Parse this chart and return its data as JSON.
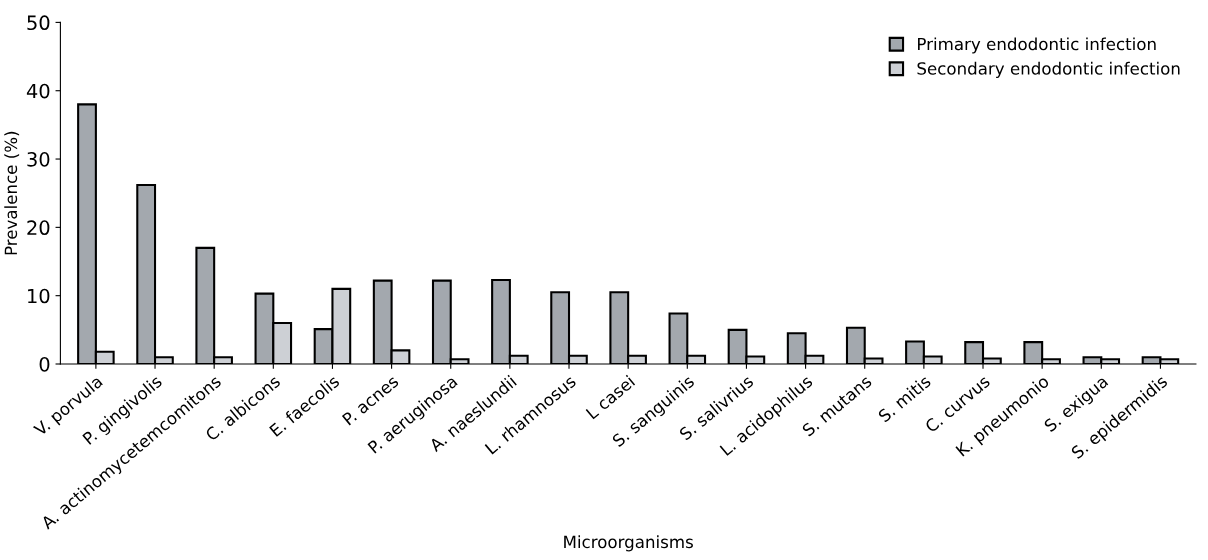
{
  "chart_data": {
    "type": "bar",
    "xlabel": "Microorganisms",
    "ylabel": "Prevalence (%)",
    "categories": [
      "V. porvula",
      "P. gingivolis",
      "A. actinomycetemcomitons",
      "C. albicons",
      "E. faecolis",
      "P. acnes",
      "P. aeruginosa",
      "A. naeslundii",
      "L. rhamnosus",
      "L casei",
      "S. sanguinis",
      "S. salivrius",
      "L. acidophilus",
      "S. mutans",
      "S. mitis",
      "C. curvus",
      "K. pneumonio",
      "S. exigua",
      "S. epidermidis"
    ],
    "series": [
      {
        "name": "Primary endodontic infection",
        "color": "#a3a8ae",
        "values": [
          38,
          26.2,
          17,
          10.3,
          5.1,
          12.2,
          12.2,
          12.3,
          10.5,
          10.5,
          7.4,
          5.0,
          4.5,
          5.3,
          3.3,
          3.2,
          3.2,
          1.0,
          1.0
        ]
      },
      {
        "name": "Secondary endodontic infection",
        "color": "#cdd0d5",
        "values": [
          1.8,
          1.0,
          1.0,
          6.0,
          11,
          2.0,
          0.7,
          1.2,
          1.2,
          1.2,
          1.2,
          1.1,
          1.2,
          0.8,
          1.1,
          0.8,
          0.7,
          0.7,
          0.7
        ]
      }
    ],
    "ylim": [
      0,
      50
    ],
    "yticks": [
      0,
      10,
      20,
      30,
      40,
      50
    ],
    "grid": false,
    "legend": "top right"
  }
}
